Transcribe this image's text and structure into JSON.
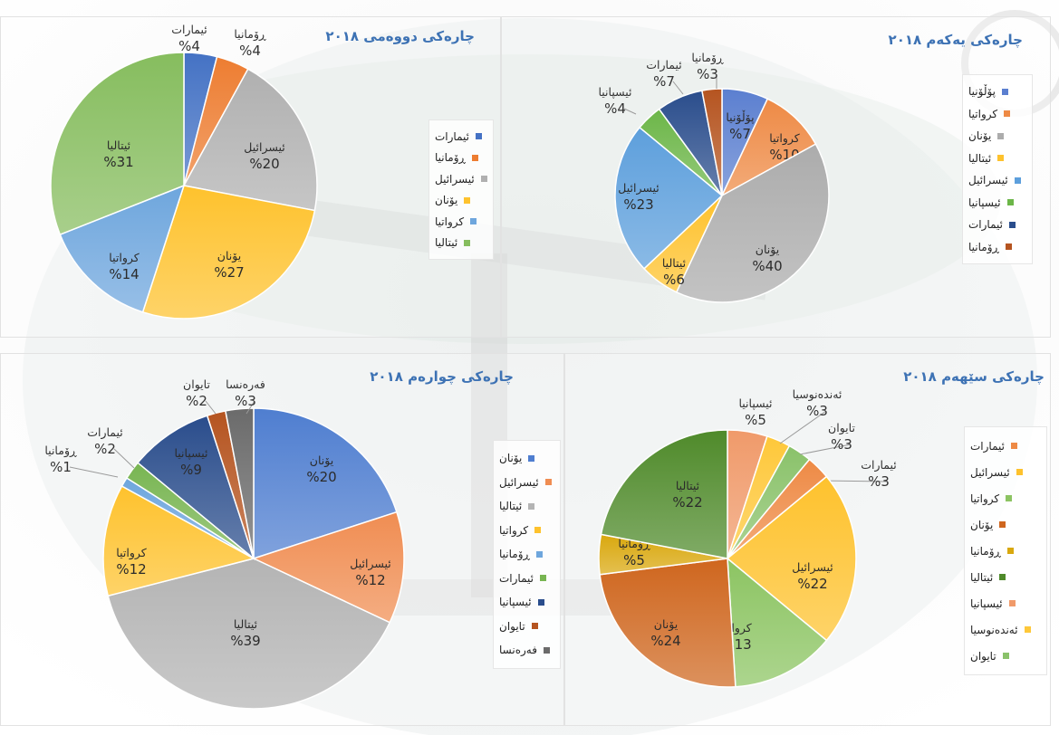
{
  "chart_data": [
    {
      "id": "c1",
      "type": "pie",
      "title": "چارەکی یەکەم ۲۰۱۸",
      "legend_position": "right",
      "slices": [
        {
          "name": "پۆڵۆنیا",
          "value": 7,
          "color": "#5b7fd0",
          "pct_text": "%7"
        },
        {
          "name": "کرواتیا",
          "value": 10,
          "color": "#ee8a45",
          "pct_text": "%10"
        },
        {
          "name": "یۆنان",
          "value": 40,
          "color": "#acacac",
          "pct_text": "%40"
        },
        {
          "name": "ئیتالیا",
          "value": 6,
          "color": "#fec22d",
          "pct_text": "%6"
        },
        {
          "name": "ئیسرائیل",
          "value": 23,
          "color": "#5d9fdc",
          "pct_text": "%23"
        },
        {
          "name": "ئیسپانیا",
          "value": 4,
          "color": "#6cb648",
          "pct_text": "%4"
        },
        {
          "name": "ئیمارات",
          "value": 7,
          "color": "#2a4d8c",
          "pct_text": "%7"
        },
        {
          "name": "ڕۆمانیا",
          "value": 3,
          "color": "#b55420",
          "pct_text": "%3"
        }
      ]
    },
    {
      "id": "c2",
      "type": "pie",
      "title": "چارەکی دووەمی ۲۰۱۸",
      "legend_position": "right",
      "slices": [
        {
          "name": "ئیمارات",
          "value": 4,
          "color": "#4472c4",
          "pct_text": "%4"
        },
        {
          "name": "ڕۆمانیا",
          "value": 4,
          "color": "#ed7d31",
          "pct_text": "%4"
        },
        {
          "name": "ئیسرائیل",
          "value": 20,
          "color": "#b0b0b0",
          "pct_text": "%20"
        },
        {
          "name": "یۆنان",
          "value": 27,
          "color": "#fec22d",
          "pct_text": "%27"
        },
        {
          "name": "کرواتیا",
          "value": 14,
          "color": "#6ea6dd",
          "pct_text": "%14"
        },
        {
          "name": "ئیتالیا",
          "value": 31,
          "color": "#86bd5e",
          "pct_text": "%31"
        }
      ]
    },
    {
      "id": "c3",
      "type": "pie",
      "title": "چارەکی چوارەم ۲۰۱۸",
      "legend_position": "right",
      "slices": [
        {
          "name": "یۆنان",
          "value": 20,
          "color": "#4f7ed0",
          "pct_text": "%20"
        },
        {
          "name": "ئیسرائیل",
          "value": 12,
          "color": "#f08d52",
          "pct_text": "%12"
        },
        {
          "name": "ئیتالیا",
          "value": 39,
          "color": "#b4b4b4",
          "pct_text": "%39"
        },
        {
          "name": "کرواتیا",
          "value": 12,
          "color": "#fec22d",
          "pct_text": "%12"
        },
        {
          "name": "ڕۆمانیا",
          "value": 1,
          "color": "#6ea6dd",
          "pct_text": "%1"
        },
        {
          "name": "ئیمارات",
          "value": 2,
          "color": "#78b552",
          "pct_text": "%2"
        },
        {
          "name": "ئیسپانیا",
          "value": 9,
          "color": "#2a4d8c",
          "pct_text": "%9"
        },
        {
          "name": "تایوان",
          "value": 2,
          "color": "#b55420",
          "pct_text": "%2"
        },
        {
          "name": "فەرەنسا",
          "value": 3,
          "color": "#6b6b6b",
          "pct_text": "%3"
        }
      ]
    },
    {
      "id": "c4",
      "type": "pie",
      "title": "چارەکی سێهەم ۲۰۱۸",
      "legend_position": "right",
      "slices": [
        {
          "name": "ئیسپانیا",
          "value": 5,
          "color": "#f09a6a",
          "pct_text": "%5"
        },
        {
          "name": "ئەندەنوسیا",
          "value": 3,
          "color": "#fec83a",
          "pct_text": "%3"
        },
        {
          "name": "تایوان",
          "value": 3,
          "color": "#8ac26a",
          "pct_text": "%3"
        },
        {
          "name": "ئیمارات",
          "value": 3,
          "color": "#ee8a45",
          "pct_text": "%3"
        },
        {
          "name": "ئیسرائیل",
          "value": 22,
          "color": "#fec22d",
          "pct_text": "%22"
        },
        {
          "name": "کرواتیا",
          "value": 13,
          "color": "#8cc462",
          "pct_text": "%13"
        },
        {
          "name": "یۆنان",
          "value": 24,
          "color": "#cf661e",
          "pct_text": "%24"
        },
        {
          "name": "ڕۆمانیا",
          "value": 5,
          "color": "#d9a80e",
          "pct_text": "%5"
        },
        {
          "name": "ئیتالیا",
          "value": 22,
          "color": "#4f8a2a",
          "pct_text": "%22"
        }
      ],
      "legend": [
        {
          "name": "ئیمارات",
          "color": "#ee8a45"
        },
        {
          "name": "ئیسرائیل",
          "color": "#fec22d"
        },
        {
          "name": "کرواتیا",
          "color": "#8cc462"
        },
        {
          "name": "یۆنان",
          "color": "#cf661e"
        },
        {
          "name": "ڕۆمانیا",
          "color": "#d9a80e"
        },
        {
          "name": "ئیتالیا",
          "color": "#4f8a2a"
        },
        {
          "name": "ئیسپانیا",
          "color": "#f09a6a"
        },
        {
          "name": "ئەندەنوسیا",
          "color": "#fec83a"
        },
        {
          "name": "تایوان",
          "color": "#8ac26a"
        }
      ]
    }
  ]
}
